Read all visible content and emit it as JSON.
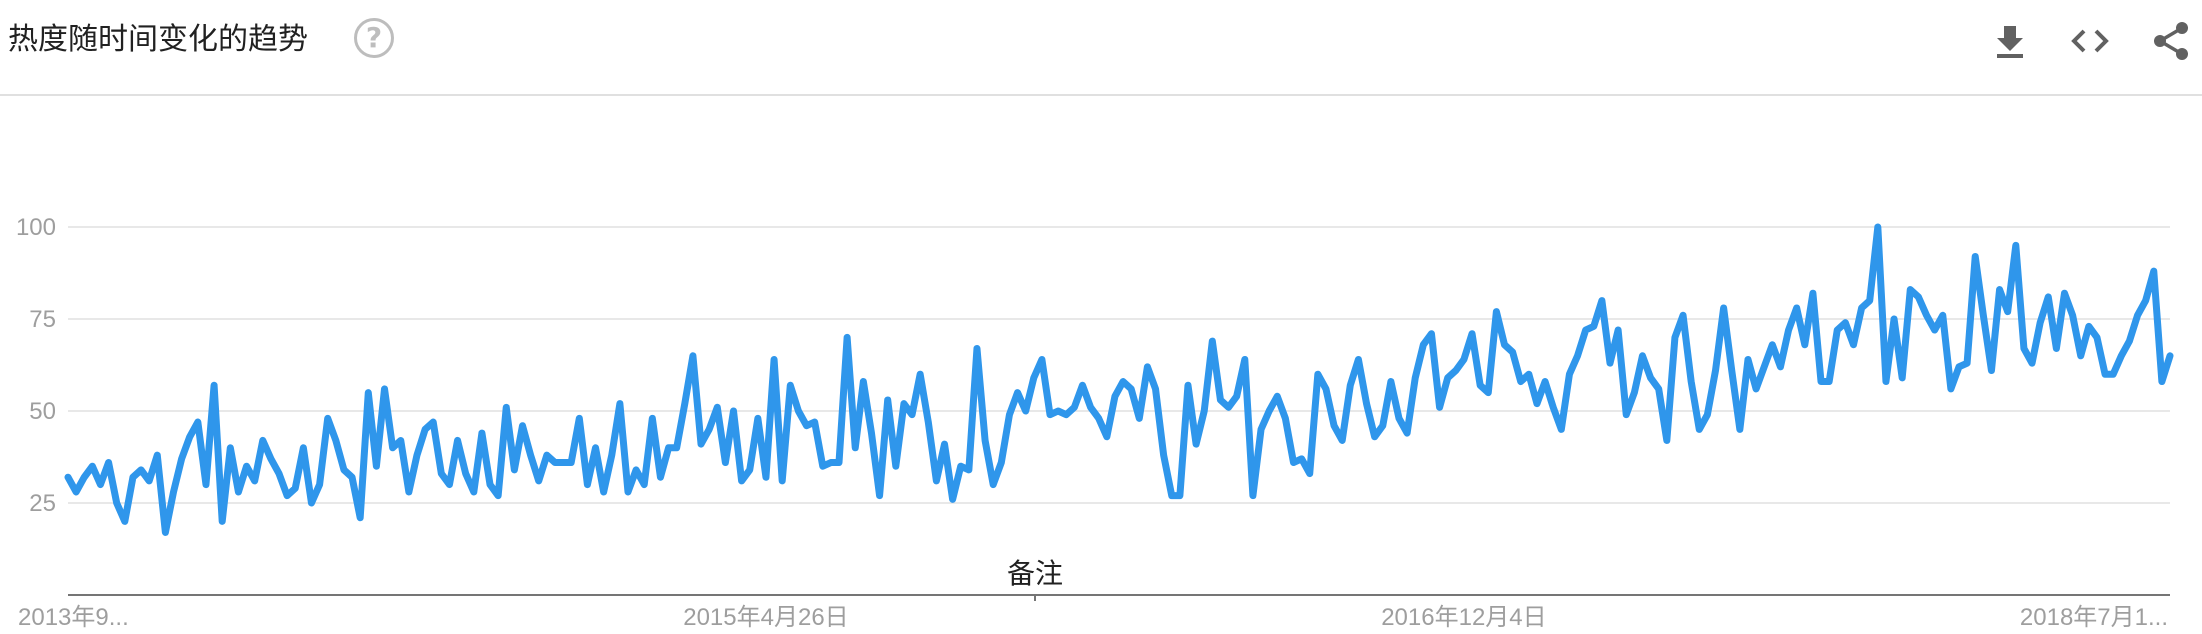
{
  "header": {
    "title": "热度随时间变化的趋势",
    "help_symbol": "?",
    "tools": [
      "download-icon",
      "embed-code-icon",
      "share-icon"
    ]
  },
  "annotation": {
    "label": "备注"
  },
  "colors": {
    "line": "#2f96eb",
    "grid": "#e0e0e0",
    "axis": "#757575",
    "tick_text": "#9e9e9e"
  },
  "chart_data": {
    "type": "line",
    "title": "热度随时间变化的趋势",
    "xlabel": "",
    "ylabel": "",
    "ylim": [
      0,
      100
    ],
    "y_ticks": [
      25,
      50,
      75,
      100
    ],
    "x_tick_labels": [
      "2013年9...",
      "2015年4月26日",
      "2016年12月4日",
      "2018年7月1..."
    ],
    "x_tick_index": [
      0,
      86,
      172,
      257
    ],
    "grid": true,
    "series": [
      {
        "values": [
          32,
          28,
          32,
          35,
          30,
          36,
          25,
          20,
          32,
          34,
          31,
          38,
          17,
          28,
          37,
          43,
          47,
          30,
          57,
          20,
          40,
          28,
          35,
          31,
          42,
          37,
          33,
          27,
          29,
          40,
          25,
          30,
          48,
          42,
          34,
          32,
          21,
          55,
          35,
          56,
          40,
          42,
          28,
          38,
          45,
          47,
          33,
          30,
          42,
          33,
          28,
          44,
          30,
          27,
          51,
          34,
          46,
          38,
          31,
          38,
          36,
          36,
          36,
          48,
          30,
          40,
          28,
          38,
          52,
          28,
          34,
          30,
          48,
          32,
          40,
          40,
          52,
          65,
          41,
          45,
          51,
          36,
          50,
          31,
          34,
          48,
          32,
          64,
          31,
          57,
          50,
          46,
          47,
          35,
          36,
          36,
          70,
          40,
          58,
          44,
          27,
          53,
          35,
          52,
          49,
          60,
          47,
          31,
          41,
          26,
          35,
          34,
          67,
          42,
          30,
          36,
          49,
          55,
          50,
          59,
          64,
          49,
          50,
          49,
          51,
          57,
          51,
          48,
          43,
          54,
          58,
          56,
          48,
          62,
          56,
          38,
          27,
          27,
          57,
          41,
          50,
          69,
          53,
          51,
          54,
          64,
          27,
          45,
          50,
          54,
          48,
          36,
          37,
          33,
          60,
          56,
          46,
          42,
          57,
          64,
          52,
          43,
          46,
          58,
          48,
          44,
          59,
          68,
          71,
          51,
          59,
          61,
          64,
          71,
          57,
          55,
          77,
          68,
          66,
          58,
          60,
          52,
          58,
          51,
          45,
          60,
          65,
          72,
          73,
          80,
          63,
          72,
          49,
          55,
          65,
          59,
          56,
          42,
          70,
          76,
          58,
          45,
          49,
          61,
          78,
          61,
          45,
          64,
          56,
          62,
          68,
          62,
          72,
          78,
          68,
          82,
          58,
          58,
          72,
          74,
          68,
          78,
          80,
          100,
          58,
          75,
          59,
          83,
          81,
          76,
          72,
          76,
          56,
          62,
          63,
          92,
          76,
          61,
          83,
          77,
          95,
          67,
          63,
          74,
          81,
          67,
          82,
          76,
          65,
          73,
          70,
          60,
          60,
          65,
          69,
          76,
          80,
          88,
          58,
          65
        ]
      }
    ]
  }
}
